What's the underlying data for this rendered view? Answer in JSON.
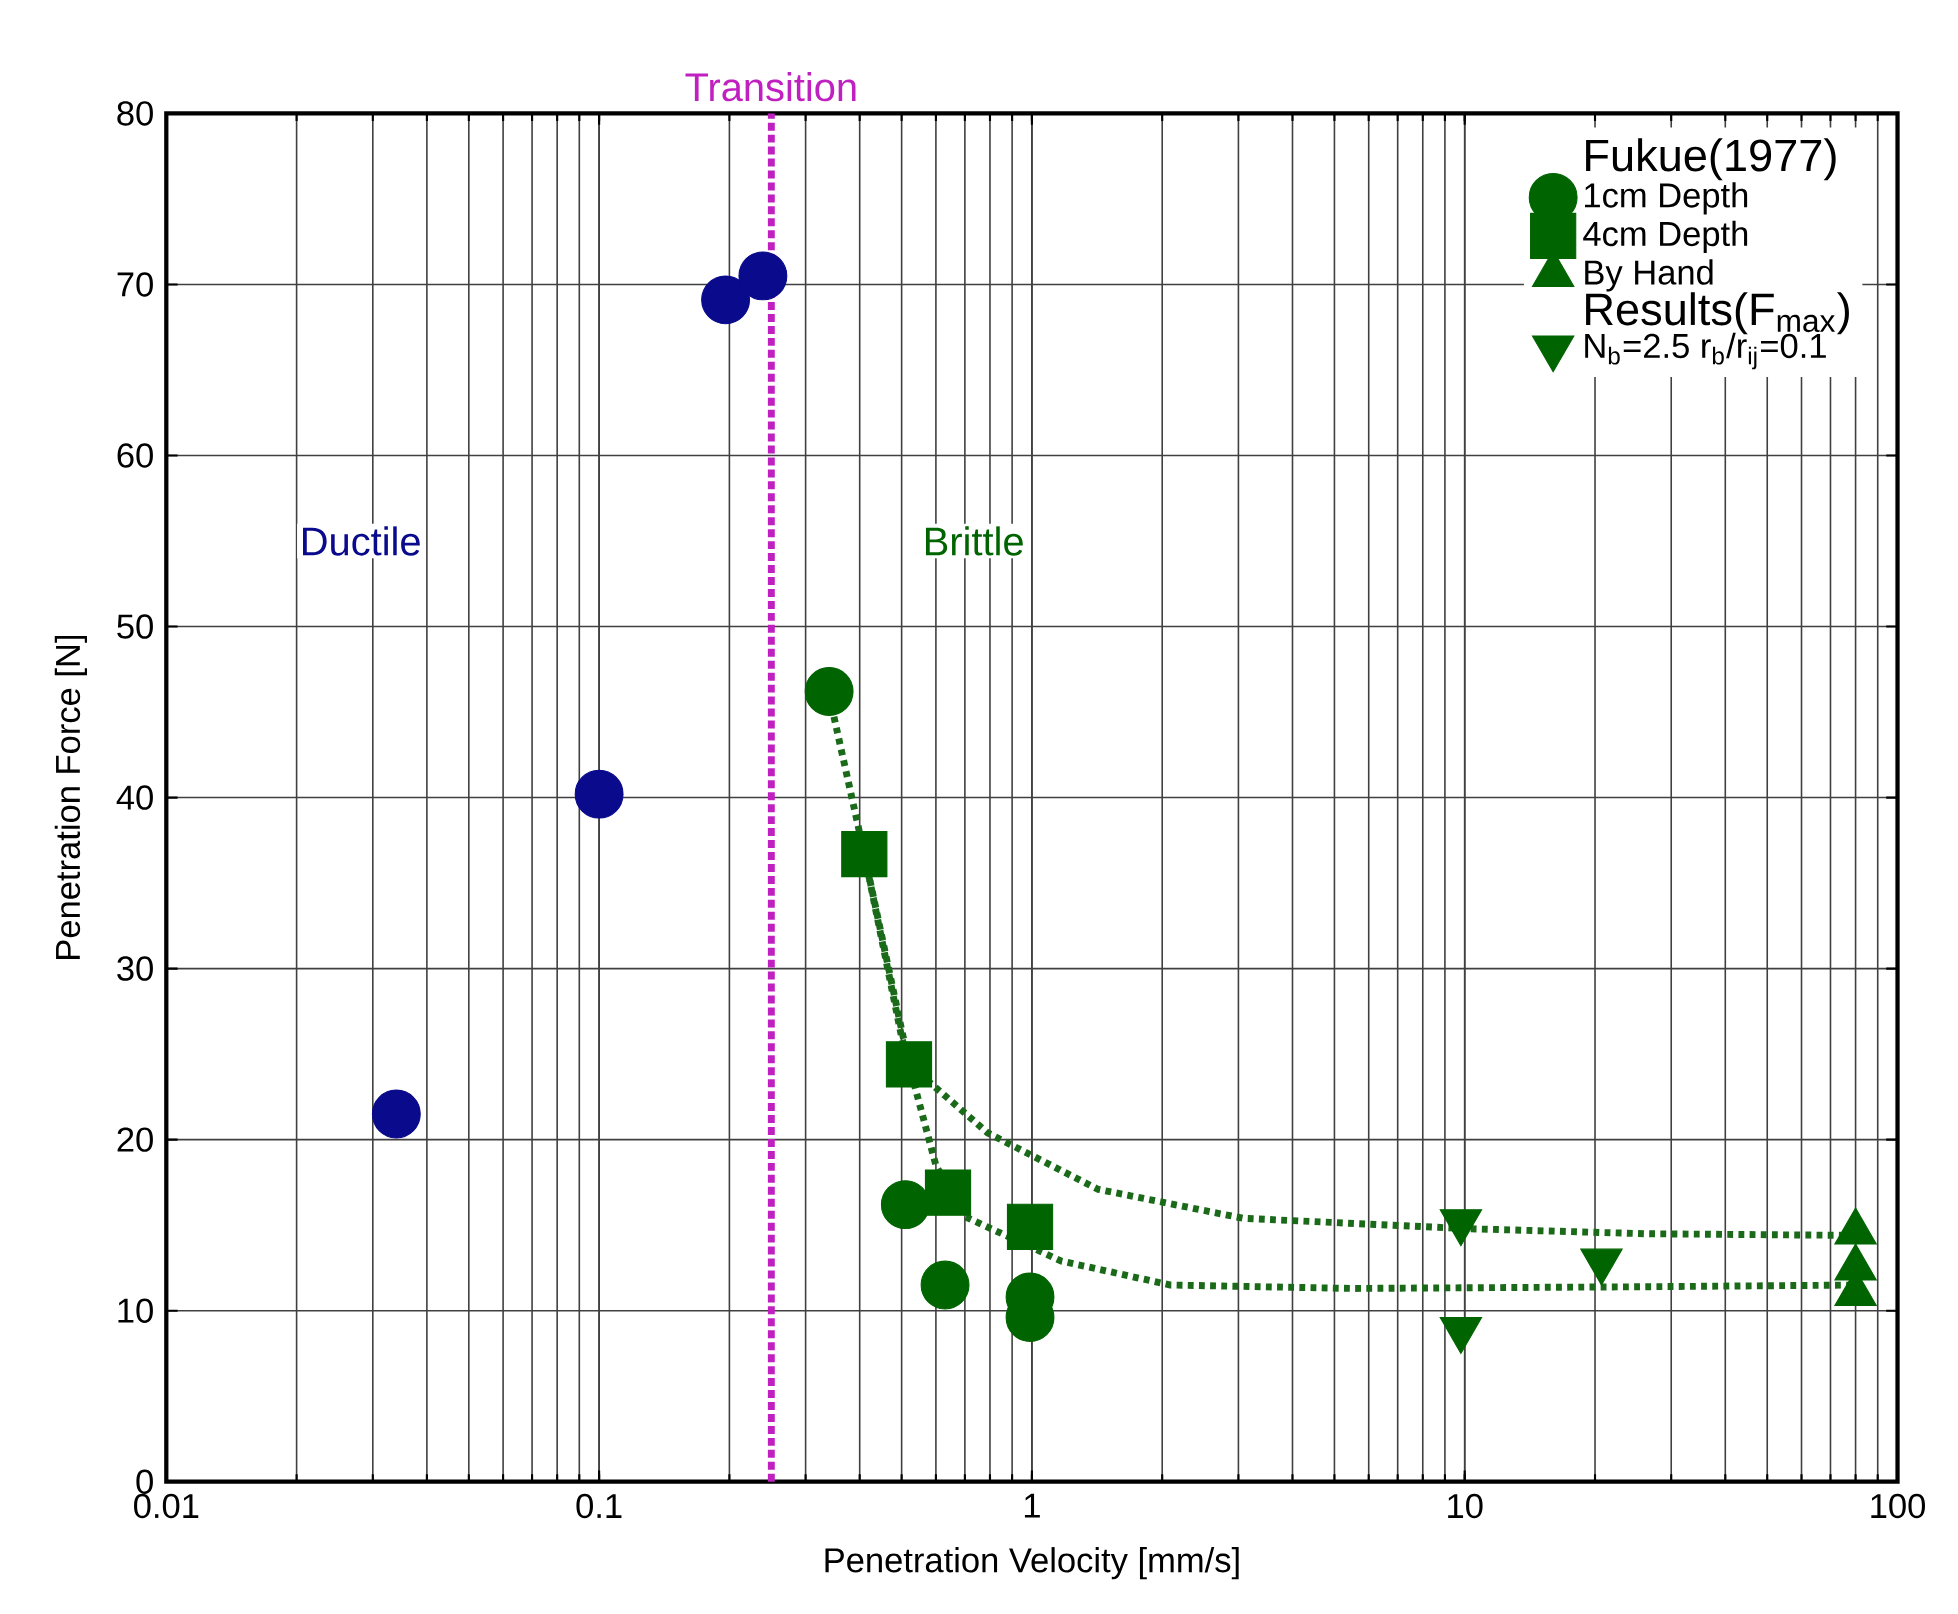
{
  "chart_data": {
    "type": "scatter",
    "xlabel": "Penetration Velocity [mm/s]",
    "ylabel": "Penetration Force [N]",
    "log": "x",
    "xlim": [
      0.01,
      100
    ],
    "ylim": [
      0,
      80
    ],
    "xticks": [
      {
        "value": 0.01,
        "label": "0.01"
      },
      {
        "value": 0.1,
        "label": "0.1"
      },
      1,
      10,
      100
    ],
    "yticks": [
      0,
      10,
      20,
      30,
      40,
      50,
      60,
      70,
      80
    ],
    "grid": true,
    "legend": "top right",
    "legend_title": "Fukue(1977)",
    "annotations": [
      "Ductile",
      "Brittle",
      "Results(F$_{max}$)"
    ],
    "ref_lines": [
      {
        "axis": "x",
        "value": 0.25,
        "label": "Transition",
        "color": "#c020c0",
        "line_style": "dashed"
      }
    ],
    "series": [
      {
        "marker": "circle",
        "color": "#0a0a8c",
        "x": [
          0.034,
          0.1,
          0.196,
          0.239
        ],
        "values": [
          21.5,
          40.2,
          69.1,
          70.5
        ]
      },
      {
        "type": "line",
        "marker": "none",
        "line_style": "dotted",
        "color": "#1a6a1a",
        "x": [
          0.34,
          0.41,
          0.52,
          0.79,
          1.42,
          3.08,
          10,
          26,
          80
        ],
        "values": [
          46,
          36.7,
          24.4,
          20.4,
          17.1,
          15.4,
          14.8,
          14.5,
          14.4
        ]
      },
      {
        "type": "line",
        "marker": "none",
        "line_style": "dotted",
        "color": "#1a6a1a",
        "x": [
          0.41,
          0.5,
          0.6,
          0.7,
          1.17,
          2.09,
          5.5,
          26,
          80
        ],
        "values": [
          36.7,
          26,
          18.5,
          15.5,
          12.9,
          11.5,
          11.3,
          11.4,
          11.5
        ]
      },
      {
        "name": "1cm Depth",
        "marker": "circle",
        "color": "#006400",
        "x": [
          0.34,
          0.51,
          0.63,
          0.99,
          0.99
        ],
        "values": [
          46.2,
          16.2,
          11.5,
          10.8,
          9.6
        ]
      },
      {
        "name": "4cm Depth",
        "marker": "square",
        "color": "#006400",
        "x": [
          0.41,
          0.52,
          0.64,
          0.99
        ],
        "values": [
          36.7,
          24.4,
          16.9,
          14.9
        ]
      },
      {
        "name": "By Hand",
        "marker": "triangle",
        "color": "#006400",
        "x": [
          80,
          80,
          80
        ],
        "values": [
          14.6,
          12.5,
          11.0
        ]
      },
      {
        "name": "N$_{b}$=2.5  r$_{b}$/r$_{ij}$=0.1",
        "marker": "triangle-down",
        "color": "#006400",
        "x": [
          9.8,
          9.8,
          20.7
        ],
        "values": [
          15.2,
          8.9,
          12.9
        ]
      }
    ]
  }
}
